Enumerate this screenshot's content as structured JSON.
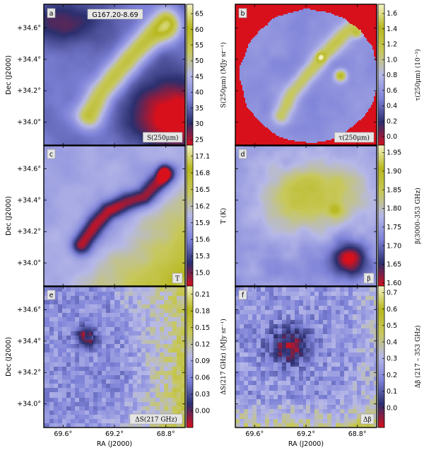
{
  "chart_data": {
    "type": "heatmap",
    "title": "",
    "axes": {
      "dec_label": "Dec (J2000)",
      "ra_label": "RA (J2000)",
      "dec_ticks": [
        "+34.6°",
        "+34.4°",
        "+34.2°",
        "+34.0°"
      ],
      "dec_values": [
        34.6,
        34.4,
        34.2,
        34.0
      ],
      "ra_ticks": [
        "69.6°",
        "69.2°",
        "68.8°"
      ],
      "ra_values": [
        69.6,
        69.2,
        68.8
      ],
      "ra_range": [
        69.75,
        68.65
      ],
      "dec_range": [
        33.85,
        34.75
      ]
    },
    "panels": [
      {
        "id": "a",
        "letter": "a",
        "inset": "S(250μm)",
        "field": "G167.20-8.69",
        "colorbar_label": "S(250μm) (MJy sr⁻¹)",
        "ticks": [
          "65",
          "60",
          "55",
          "50",
          "45",
          "40",
          "35",
          "30",
          "25"
        ],
        "tick_values": [
          65,
          60,
          55,
          50,
          45,
          40,
          35,
          30,
          25
        ],
        "vmin": 23,
        "vmax": 68
      },
      {
        "id": "b",
        "letter": "b",
        "inset": "τ(250μm)",
        "colorbar_label": "τ(250μm) (10⁻³)",
        "ticks": [
          "1.6",
          "1.4",
          "1.2",
          "1.0",
          "0.8",
          "0.6",
          "0.4",
          "0.2",
          "0.0"
        ],
        "tick_values": [
          1.6,
          1.4,
          1.2,
          1.0,
          0.8,
          0.6,
          0.4,
          0.2,
          0.0
        ],
        "vmin": -0.12,
        "vmax": 1.72
      },
      {
        "id": "c",
        "letter": "c",
        "inset": "T",
        "colorbar_label": "T (K)",
        "ticks": [
          "17.1",
          "16.8",
          "16.5",
          "16.2",
          "15.9",
          "15.6",
          "15.3",
          "15.0"
        ],
        "tick_values": [
          17.1,
          16.8,
          16.5,
          16.2,
          15.9,
          15.6,
          15.3,
          15.0
        ],
        "vmin": 14.75,
        "vmax": 17.3
      },
      {
        "id": "d",
        "letter": "d",
        "inset": "β",
        "colorbar_label": "β(3000–353 GHz)",
        "ticks": [
          "1.95",
          "1.90",
          "1.85",
          "1.80",
          "1.75",
          "1.70",
          "1.65",
          "1.60"
        ],
        "tick_values": [
          1.95,
          1.9,
          1.85,
          1.8,
          1.75,
          1.7,
          1.65,
          1.6
        ],
        "vmin": 1.59,
        "vmax": 1.97
      },
      {
        "id": "e",
        "letter": "e",
        "inset": "ΔS(217 GHz)",
        "colorbar_label": "ΔS(217 GHz) (MJy sr⁻¹)",
        "ticks": [
          "0.21",
          "0.18",
          "0.15",
          "0.12",
          "0.09",
          "0.06",
          "0.03",
          "0.00"
        ],
        "tick_values": [
          0.21,
          0.18,
          0.15,
          0.12,
          0.09,
          0.06,
          0.03,
          0.0
        ],
        "vmin": -0.03,
        "vmax": 0.225
      },
      {
        "id": "f",
        "letter": "f",
        "inset": "Δβ",
        "colorbar_label": "Δβ (217 – 353 GHz)",
        "ticks": [
          "0.7",
          "0.6",
          "0.5",
          "0.4",
          "0.3",
          "0.2",
          "0.1",
          "0.0"
        ],
        "tick_values": [
          0.7,
          0.6,
          0.5,
          0.4,
          0.3,
          0.2,
          0.1,
          0.0
        ],
        "vmin": -0.12,
        "vmax": 0.74
      }
    ],
    "colormap": [
      "#d7101c",
      "#2b2f6e",
      "#7e82d8",
      "#b6b8e8",
      "#c7c85a",
      "#b8b81e",
      "#f4f4c8"
    ],
    "grid": false,
    "legend": "none"
  }
}
